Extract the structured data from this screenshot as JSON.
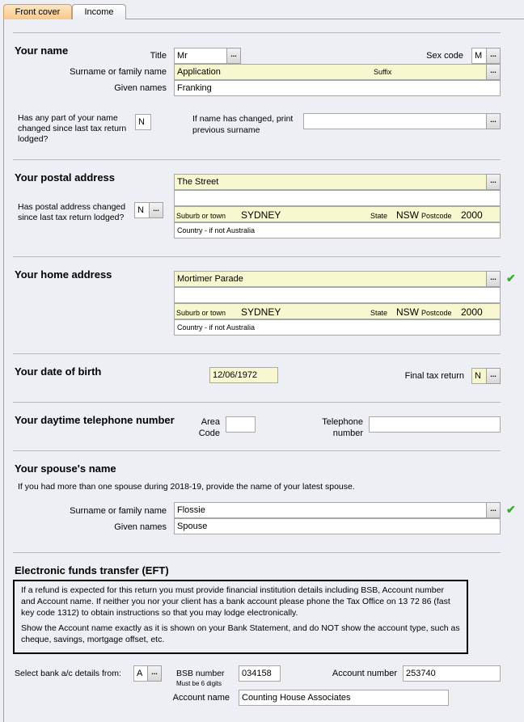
{
  "tabs": [
    {
      "label": "Front cover",
      "active": true
    },
    {
      "label": "Income",
      "active": false
    }
  ],
  "name": {
    "heading": "Your name",
    "title_label": "Title",
    "title_value": "Mr",
    "sex_label": "Sex code",
    "sex_value": "M",
    "surname_label": "Surname or family name",
    "surname_value": "Application",
    "suffix_label": "Suffix",
    "given_label": "Given names",
    "given_value": "Franking",
    "changed_question": "Has any part of your name changed since last tax return lodged?",
    "changed_value": "N",
    "previous_label": "If name has changed, print previous surname",
    "previous_value": ""
  },
  "postal": {
    "heading": "Your postal address",
    "line1": "The Street",
    "line2": "",
    "suburb_label": "Suburb or town",
    "suburb": "SYDNEY",
    "state_label": "State",
    "state": "NSW",
    "postcode_label": "Postcode",
    "postcode": "2000",
    "country_label": "Country - if not Australia",
    "changed_question": "Has postal address changed since last tax return lodged?",
    "changed_value": "N"
  },
  "home": {
    "heading": "Your home address",
    "line1": "Mortimer Parade",
    "line2": "",
    "suburb_label": "Suburb or town",
    "suburb": "SYDNEY",
    "state_label": "State",
    "state": "NSW",
    "postcode_label": "Postcode",
    "postcode": "2000",
    "country_label": "Country - if not Australia"
  },
  "dob": {
    "heading": "Your date of birth",
    "value": "12/06/1972",
    "final_label": "Final tax return",
    "final_value": "N"
  },
  "phone": {
    "heading": "Your daytime telephone number",
    "area_label_1": "Area",
    "area_label_2": "Code",
    "area_value": "",
    "tel_label_1": "Telephone",
    "tel_label_2": "number",
    "tel_value": ""
  },
  "spouse": {
    "heading": "Your spouse's name",
    "note": "If you had more than one spouse during 2018-19, provide the name of your latest spouse.",
    "surname_label": "Surname or family name",
    "surname_value": "Flossie",
    "given_label": "Given names",
    "given_value": "Spouse"
  },
  "eft": {
    "heading": "Electronic funds transfer (EFT)",
    "note_1": "If a refund is expected for this return you must provide financial institution details including BSB, Account number and Account name. If neither you nor your client has a bank account please phone the Tax Office on 13 72 86 (fast key code 1312) to obtain instructions so that you may lodge electronically.",
    "note_2": "Show the Account name exactly as it is shown on your Bank Statement, and do NOT show the account type, such as cheque, savings, mortgage offset, etc.",
    "select_label": "Select bank a/c details from:",
    "select_value": "A",
    "bsb_label": "BSB number",
    "bsb_hint": "Must be 6 digits",
    "bsb_value": "034158",
    "acct_label": "Account number",
    "acct_value": "253740",
    "acct_name_label": "Account name",
    "acct_name_value": "Counting House Associates"
  },
  "ellipsis": "...",
  "check": "✔",
  "colors": {
    "required_field": "#f8f8d0",
    "tab_active": "#f9c88a",
    "check": "#3aa832"
  }
}
